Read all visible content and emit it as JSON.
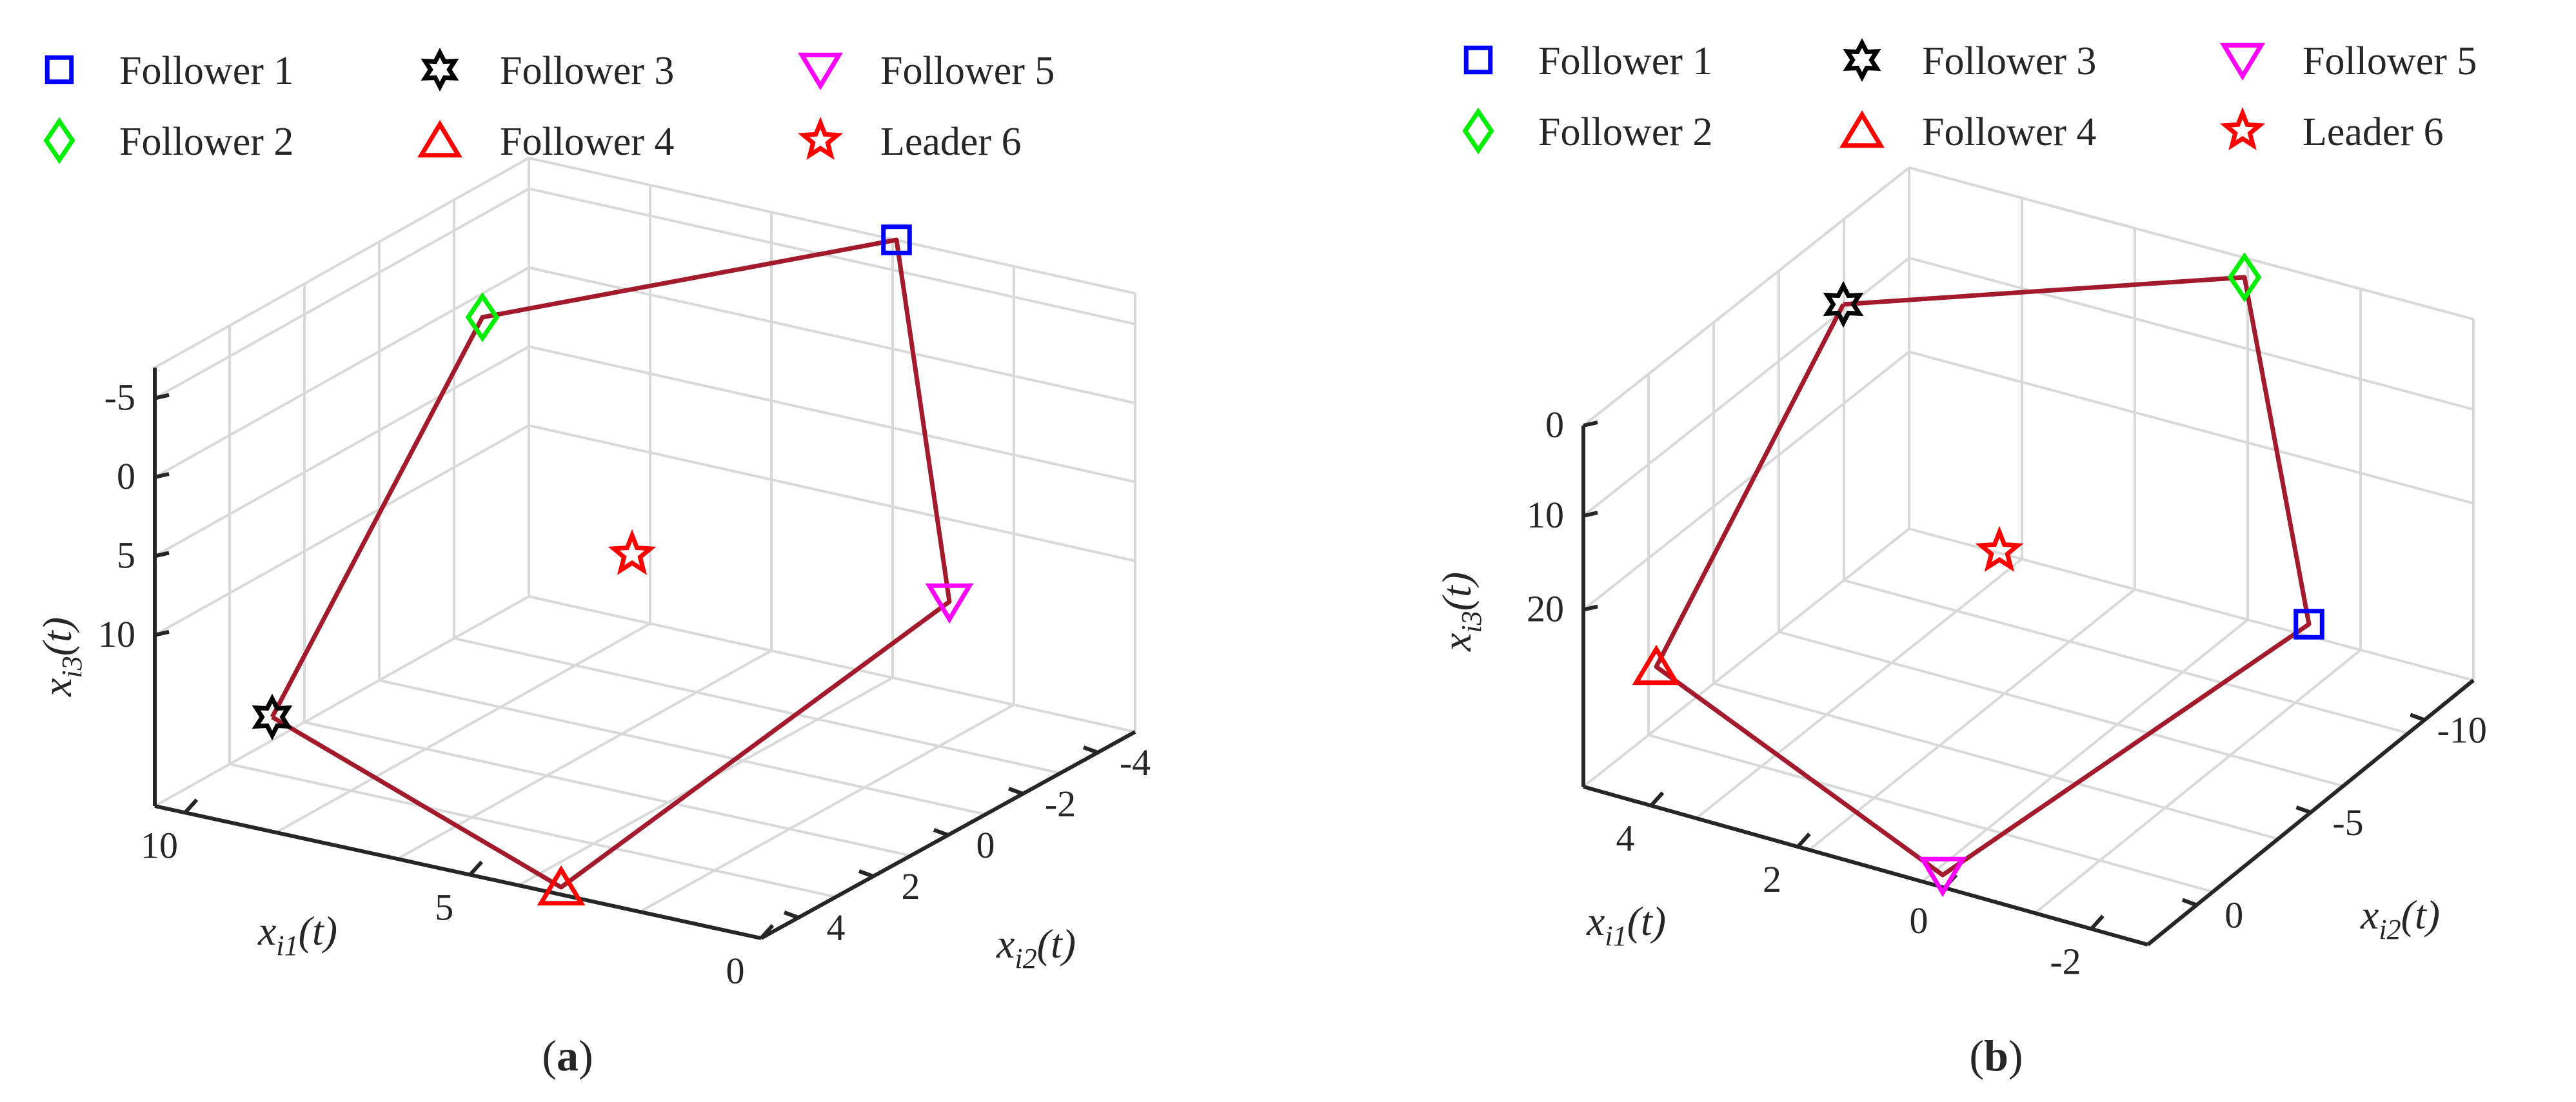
{
  "chart_data": [
    {
      "type": "scatter",
      "panel": "a",
      "caption": "a",
      "xlabel": {
        "base": "x",
        "sub": "i1",
        "arg": "(t)"
      },
      "ylabel": {
        "base": "x",
        "sub": "i2",
        "arg": "(t)"
      },
      "zlabel": {
        "base": "x",
        "sub": "i3",
        "arg": "(t)"
      },
      "z_ticks": [
        "10",
        "5",
        "0",
        "-5"
      ],
      "x_ticks": [
        "10",
        "5",
        "0"
      ],
      "y_ticks": [
        "4",
        "2",
        "0",
        "-2",
        "-4"
      ],
      "legend": [
        "Follower 1",
        "Follower 2",
        "Follower 3",
        "Follower 4",
        "Follower 5",
        "Leader 6"
      ],
      "series": [
        {
          "name": "Follower 1",
          "marker": "square",
          "color": "#0000ff"
        },
        {
          "name": "Follower 2",
          "marker": "diamond",
          "color": "#00ee00"
        },
        {
          "name": "Follower 3",
          "marker": "hexagram",
          "color": "#000000"
        },
        {
          "name": "Follower 4",
          "marker": "triangle-up",
          "color": "#ff0000"
        },
        {
          "name": "Follower 5",
          "marker": "triangle-down",
          "color": "#ff00ff"
        },
        {
          "name": "Leader 6",
          "marker": "pentagram",
          "color": "#ff0000"
        }
      ],
      "link_order": [
        "Follower 3",
        "Follower 2",
        "Follower 1",
        "Follower 5",
        "Follower 4",
        "Follower 3"
      ],
      "link_color": "#a21a2c"
    },
    {
      "type": "scatter",
      "panel": "b",
      "caption": "b",
      "xlabel": {
        "base": "x",
        "sub": "i1",
        "arg": "(t)"
      },
      "ylabel": {
        "base": "x",
        "sub": "i2",
        "arg": "(t)"
      },
      "zlabel": {
        "base": "x",
        "sub": "i3",
        "arg": "(t)"
      },
      "z_ticks": [
        "20",
        "10",
        "0"
      ],
      "x_ticks": [
        "4",
        "2",
        "0",
        "-2"
      ],
      "y_ticks": [
        "0",
        "-5",
        "-10"
      ],
      "legend": [
        "Follower 1",
        "Follower 2",
        "Follower 3",
        "Follower 4",
        "Follower 5",
        "Leader 6"
      ],
      "series": [
        {
          "name": "Follower 1",
          "marker": "square",
          "color": "#0000ff"
        },
        {
          "name": "Follower 2",
          "marker": "diamond",
          "color": "#00ee00"
        },
        {
          "name": "Follower 3",
          "marker": "hexagram",
          "color": "#000000"
        },
        {
          "name": "Follower 4",
          "marker": "triangle-up",
          "color": "#ff0000"
        },
        {
          "name": "Follower 5",
          "marker": "triangle-down",
          "color": "#ff00ff"
        },
        {
          "name": "Leader 6",
          "marker": "pentagram",
          "color": "#ff0000"
        }
      ],
      "link_order": [
        "Follower 3",
        "Follower 2",
        "Follower 1",
        "Follower 5",
        "Follower 4",
        "Follower 3"
      ],
      "link_color": "#a21a2c"
    }
  ]
}
